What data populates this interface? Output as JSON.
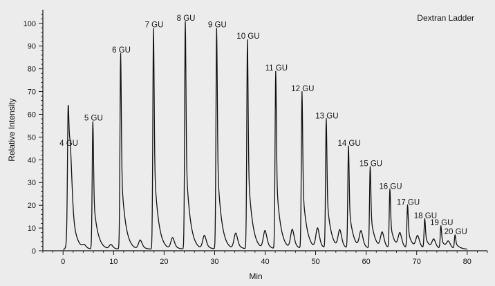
{
  "chart_data": {
    "type": "line",
    "annotation": "Dextran Ladder",
    "xlabel": "Min",
    "ylabel": "Relative Intensity",
    "xlim": [
      -4,
      84
    ],
    "ylim": [
      0,
      106
    ],
    "x_ticks": [
      0,
      10,
      20,
      30,
      40,
      50,
      60,
      70,
      80
    ],
    "y_ticks": [
      0,
      10,
      20,
      30,
      40,
      50,
      60,
      70,
      80,
      90,
      100
    ],
    "grid": false,
    "series_color": "#111111",
    "peaks": [
      {
        "label": "4 GU",
        "x": 1.0,
        "y": 45
      },
      {
        "label": "5 GU",
        "x": 5.9,
        "y": 56
      },
      {
        "label": "6 GU",
        "x": 11.4,
        "y": 86
      },
      {
        "label": "7 GU",
        "x": 17.9,
        "y": 97
      },
      {
        "label": "8 GU",
        "x": 24.2,
        "y": 100
      },
      {
        "label": "9 GU",
        "x": 30.4,
        "y": 97
      },
      {
        "label": "10 GU",
        "x": 36.5,
        "y": 92
      },
      {
        "label": "11 GU",
        "x": 42.1,
        "y": 78
      },
      {
        "label": "12 GU",
        "x": 47.3,
        "y": 69
      },
      {
        "label": "13 GU",
        "x": 52.1,
        "y": 57
      },
      {
        "label": "14 GU",
        "x": 56.5,
        "y": 45
      },
      {
        "label": "15 GU",
        "x": 60.8,
        "y": 36
      },
      {
        "label": "16 GU",
        "x": 64.7,
        "y": 26
      },
      {
        "label": "17 GU",
        "x": 68.2,
        "y": 19
      },
      {
        "label": "18 GU",
        "x": 71.6,
        "y": 13
      },
      {
        "label": "19 GU",
        "x": 74.8,
        "y": 10
      },
      {
        "label": "20 GU",
        "x": 77.6,
        "y": 6
      }
    ],
    "minor_peaks": [
      {
        "x": 1.4,
        "y": 35
      },
      {
        "x": 4.2,
        "y": 1.5
      },
      {
        "x": 9.5,
        "y": 2
      },
      {
        "x": 15.3,
        "y": 4
      },
      {
        "x": 21.7,
        "y": 5
      },
      {
        "x": 28.0,
        "y": 6
      },
      {
        "x": 34.2,
        "y": 7
      },
      {
        "x": 40.0,
        "y": 8
      },
      {
        "x": 45.4,
        "y": 8.5
      },
      {
        "x": 50.4,
        "y": 9
      },
      {
        "x": 54.8,
        "y": 8
      },
      {
        "x": 59.0,
        "y": 7.5
      },
      {
        "x": 63.2,
        "y": 7
      },
      {
        "x": 66.7,
        "y": 6.5
      },
      {
        "x": 70.2,
        "y": 5.5
      },
      {
        "x": 73.4,
        "y": 4
      },
      {
        "x": 76.3,
        "y": 3
      }
    ]
  }
}
